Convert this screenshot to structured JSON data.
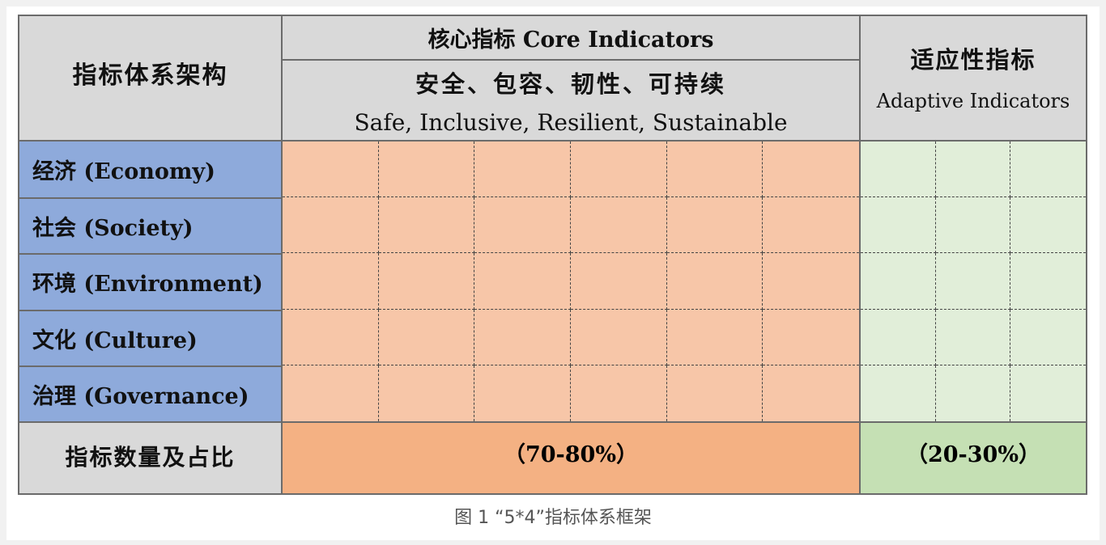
{
  "table": {
    "architecture_label": "指标体系架构",
    "core": {
      "title": "核心指标 Core Indicators",
      "subtitle_cn": "安全、包容、韧性、可持续",
      "subtitle_en": "Safe, Inclusive, Resilient, Sustainable"
    },
    "adaptive": {
      "title_cn": "适应性指标",
      "title_en": "Adaptive Indicators"
    },
    "dimensions": [
      {
        "label": "经济 (Economy)"
      },
      {
        "label": "社会 (Society)"
      },
      {
        "label": "环境 (Environment)"
      },
      {
        "label": "文化 (Culture)"
      },
      {
        "label": "治理 (Governance)"
      }
    ],
    "count_label": "指标数量及占比",
    "core_share": "（70-80%）",
    "adaptive_share": "（20-30%）"
  },
  "colors": {
    "header_gray": "#d9d9d9",
    "dimension_blue": "#8eaadb",
    "core_light": "#f7c6a8",
    "core_dark": "#f4b183",
    "adaptive_light": "#e1eed9",
    "adaptive_dark": "#c5e0b4"
  },
  "caption": "图 1 “5*4”指标体系框架"
}
